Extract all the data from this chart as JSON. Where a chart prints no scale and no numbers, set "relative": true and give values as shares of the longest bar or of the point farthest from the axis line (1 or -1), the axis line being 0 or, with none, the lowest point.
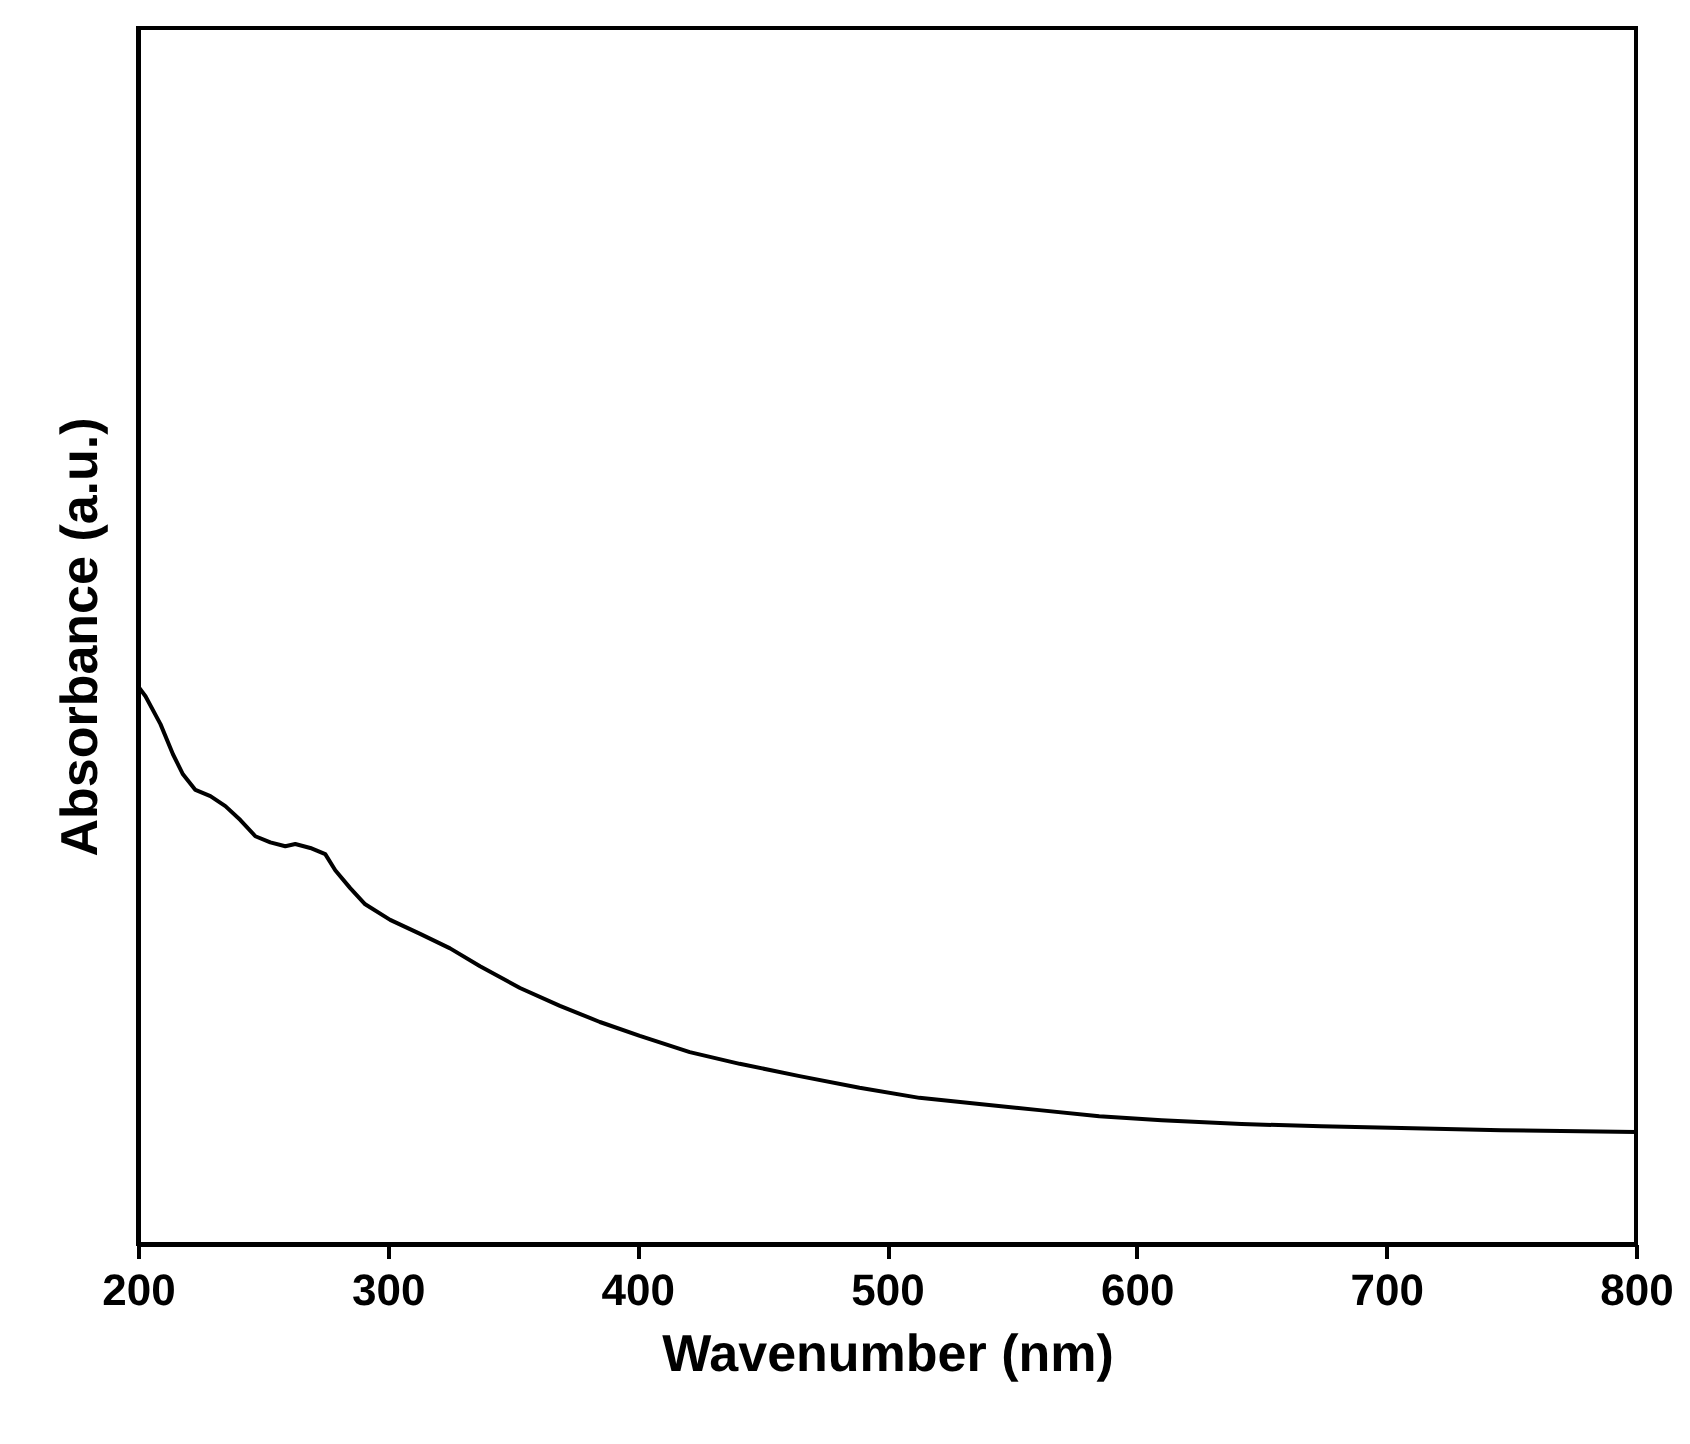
{
  "chart_data": {
    "type": "line",
    "xlabel": "Wavenumber (nm)",
    "ylabel": "Absorbance (a.u.)",
    "relative": true,
    "xlim": [
      200,
      800
    ],
    "xticks": [
      200,
      300,
      400,
      500,
      600,
      700,
      800
    ],
    "grid": false,
    "marker": "none",
    "line_style": "solid",
    "series": [
      {
        "color": "#000000",
        "x": [
          200,
          203,
          209,
          214,
          218,
          223,
          229,
          235,
          241,
          247,
          253,
          259,
          263,
          269,
          275,
          279,
          285,
          291,
          301,
          313,
          325,
          337,
          353,
          369,
          385,
          401,
          421,
          441,
          465,
          489,
          513,
          537,
          561,
          585,
          610,
          642,
          674,
          706,
          746,
          800
        ],
        "values": [
          1.0,
          0.982,
          0.932,
          0.878,
          0.842,
          0.814,
          0.803,
          0.785,
          0.76,
          0.731,
          0.72,
          0.713,
          0.717,
          0.71,
          0.699,
          0.67,
          0.638,
          0.609,
          0.581,
          0.556,
          0.53,
          0.498,
          0.459,
          0.427,
          0.398,
          0.373,
          0.344,
          0.323,
          0.301,
          0.28,
          0.262,
          0.251,
          0.24,
          0.229,
          0.222,
          0.215,
          0.211,
          0.208,
          0.204,
          0.201
        ]
      }
    ]
  }
}
